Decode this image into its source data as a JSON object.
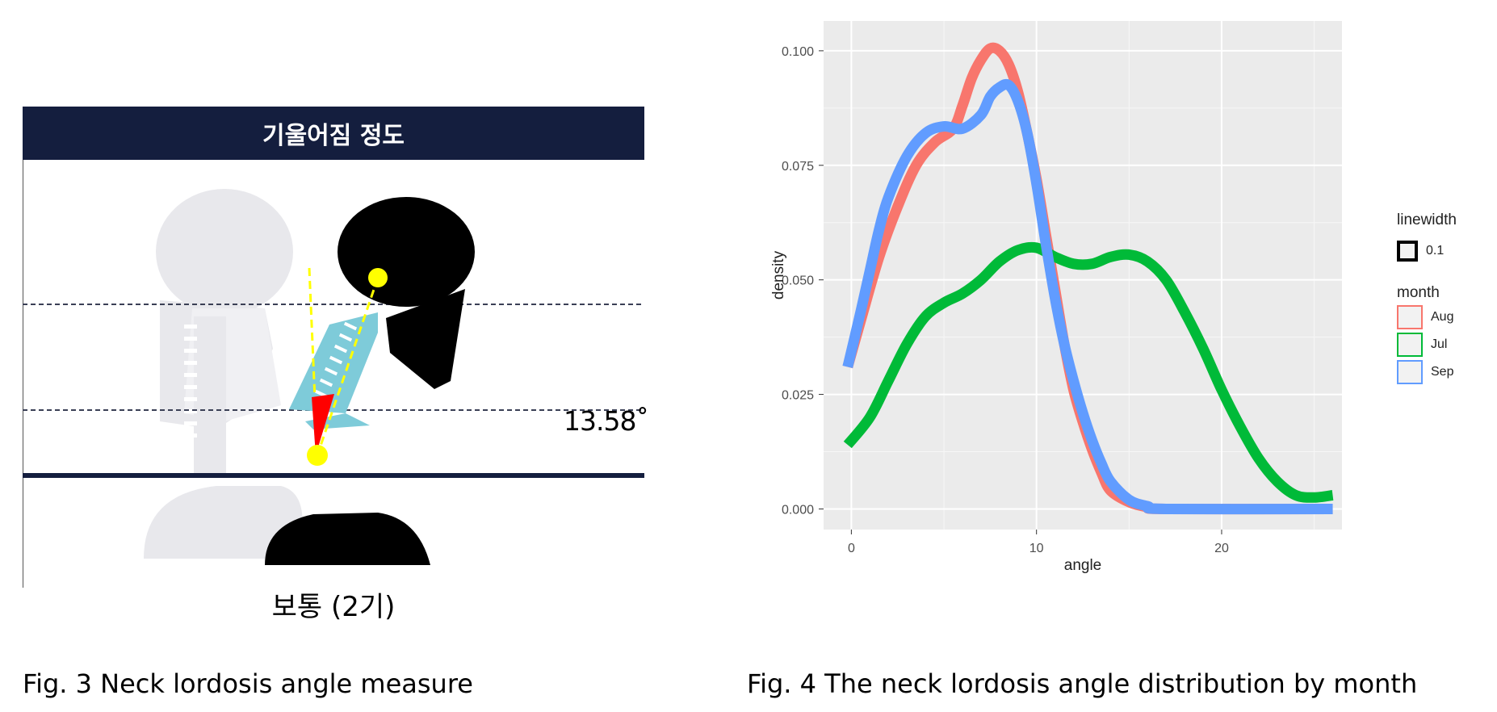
{
  "figure3": {
    "header_title": "기울어짐 정도",
    "angle_text": "13.58˚",
    "grade_text": "보통 (2기)",
    "colors": {
      "header": "#141e3e",
      "silhouette_ghost": "#e8e8ec",
      "silhouette": "#000000",
      "spine": "#7ecbd9",
      "marker": "#ffff00",
      "angle_wedge": "#ff0000",
      "baseline": "#141e3e"
    }
  },
  "figure4": {
    "chart_data": {
      "type": "line",
      "xlabel": "angle",
      "ylabel": "density",
      "xlim": [
        -1.5,
        26.5
      ],
      "ylim": [
        -0.0045,
        0.1065
      ],
      "x_ticks": [
        0,
        10,
        20
      ],
      "x_tick_labels": [
        "0",
        "10",
        "20"
      ],
      "y_ticks": [
        0.0,
        0.025,
        0.05,
        0.075,
        0.1
      ],
      "y_tick_labels": [
        "0.000",
        "0.025",
        "0.050",
        "0.075",
        "0.100"
      ],
      "grid": true,
      "background": "#ebebeb",
      "legend_placement": "right",
      "series": [
        {
          "name": "Aug",
          "color": "#f8766d",
          "points": [
            [
              -0.2,
              0.031
            ],
            [
              0.5,
              0.041
            ],
            [
              1.5,
              0.055
            ],
            [
              2.5,
              0.066
            ],
            [
              3.5,
              0.075
            ],
            [
              4.5,
              0.08
            ],
            [
              5.5,
              0.083
            ],
            [
              6.0,
              0.088
            ],
            [
              6.5,
              0.094
            ],
            [
              7.0,
              0.098
            ],
            [
              7.5,
              0.1005
            ],
            [
              8.0,
              0.1
            ],
            [
              8.5,
              0.097
            ],
            [
              9.0,
              0.091
            ],
            [
              9.5,
              0.082
            ],
            [
              10.0,
              0.072
            ],
            [
              10.5,
              0.06
            ],
            [
              11.0,
              0.048
            ],
            [
              11.5,
              0.036
            ],
            [
              12.0,
              0.026
            ],
            [
              12.5,
              0.019
            ],
            [
              13.0,
              0.013
            ],
            [
              13.5,
              0.008
            ],
            [
              14.0,
              0.004
            ],
            [
              15.0,
              0.0015
            ],
            [
              16.0,
              0.0004
            ],
            [
              17.0,
              0.0
            ],
            [
              26.0,
              0.0
            ]
          ]
        },
        {
          "name": "Jul",
          "color": "#00ba38",
          "points": [
            [
              -0.2,
              0.014
            ],
            [
              1.0,
              0.02
            ],
            [
              2.0,
              0.028
            ],
            [
              3.0,
              0.036
            ],
            [
              4.0,
              0.042
            ],
            [
              5.0,
              0.045
            ],
            [
              6.0,
              0.047
            ],
            [
              7.0,
              0.05
            ],
            [
              8.0,
              0.054
            ],
            [
              9.0,
              0.0565
            ],
            [
              10.0,
              0.057
            ],
            [
              11.0,
              0.055
            ],
            [
              12.0,
              0.0535
            ],
            [
              13.0,
              0.0535
            ],
            [
              14.0,
              0.055
            ],
            [
              15.0,
              0.0555
            ],
            [
              16.0,
              0.054
            ],
            [
              17.0,
              0.05
            ],
            [
              18.0,
              0.043
            ],
            [
              19.0,
              0.035
            ],
            [
              20.0,
              0.026
            ],
            [
              21.0,
              0.018
            ],
            [
              22.0,
              0.011
            ],
            [
              23.0,
              0.006
            ],
            [
              24.0,
              0.003
            ],
            [
              25.0,
              0.0025
            ],
            [
              26.0,
              0.003
            ]
          ]
        },
        {
          "name": "Sep",
          "color": "#619cff",
          "points": [
            [
              -0.2,
              0.031
            ],
            [
              0.5,
              0.043
            ],
            [
              1.0,
              0.052
            ],
            [
              1.5,
              0.061
            ],
            [
              2.0,
              0.068
            ],
            [
              3.0,
              0.077
            ],
            [
              4.0,
              0.082
            ],
            [
              5.0,
              0.0835
            ],
            [
              6.0,
              0.083
            ],
            [
              7.0,
              0.086
            ],
            [
              7.5,
              0.09
            ],
            [
              8.0,
              0.092
            ],
            [
              8.5,
              0.0925
            ],
            [
              9.0,
              0.089
            ],
            [
              9.5,
              0.082
            ],
            [
              10.0,
              0.071
            ],
            [
              10.5,
              0.058
            ],
            [
              11.0,
              0.046
            ],
            [
              11.5,
              0.036
            ],
            [
              12.0,
              0.028
            ],
            [
              12.5,
              0.021
            ],
            [
              13.0,
              0.015
            ],
            [
              13.5,
              0.01
            ],
            [
              14.0,
              0.006
            ],
            [
              15.0,
              0.002
            ],
            [
              16.0,
              0.0006
            ],
            [
              17.0,
              0.0
            ],
            [
              26.0,
              0.0
            ]
          ]
        }
      ]
    },
    "legend": {
      "linewidth_title": "linewidth",
      "linewidth_value": "0.1",
      "month_title": "month",
      "months": [
        "Aug",
        "Jul",
        "Sep"
      ]
    }
  },
  "captions": {
    "fig3": "Fig. 3 Neck lordosis angle measure",
    "fig4": "Fig. 4 The neck lordosis angle distribution by month"
  }
}
